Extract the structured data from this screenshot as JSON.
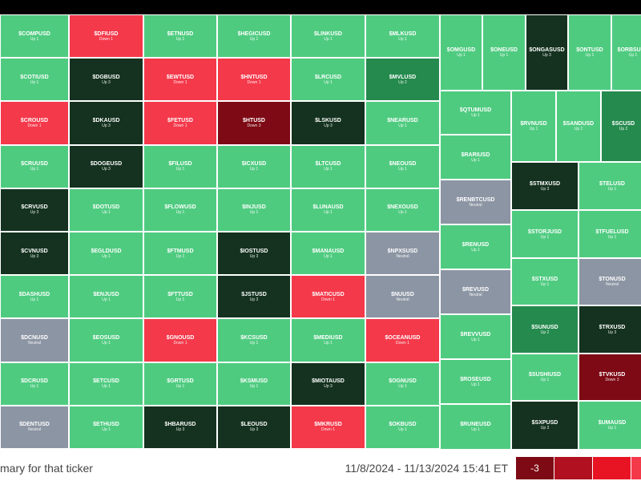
{
  "tiles": [
    {
      "ticker": "$COMPUSD",
      "status": "Up 1",
      "color": "#4fcb80"
    },
    {
      "ticker": "$COTIUSD",
      "status": "Up 1",
      "color": "#4fcb80"
    },
    {
      "ticker": "$CROUSD",
      "status": "Down 1",
      "color": "#f4394b"
    },
    {
      "ticker": "$CRUUSD",
      "status": "Up 1",
      "color": "#4fcb80"
    },
    {
      "ticker": "$CRVUSD",
      "status": "Up 3",
      "color": "#14321f"
    },
    {
      "ticker": "$CVNUSD",
      "status": "Up 3",
      "color": "#14321f"
    },
    {
      "ticker": "$DASHUSD",
      "status": "Up 1",
      "color": "#4fcb80"
    },
    {
      "ticker": "$DCNUSD",
      "status": "Neutral",
      "color": "#8c95a3"
    },
    {
      "ticker": "$DCRUSD",
      "status": "Up 1",
      "color": "#4fcb80"
    },
    {
      "ticker": "$DENTUSD",
      "status": "Neutral",
      "color": "#8c95a3"
    },
    {
      "ticker": "$DFIUSD",
      "status": "Down 1",
      "color": "#f4394b"
    },
    {
      "ticker": "$DGBUSD",
      "status": "Up 3",
      "color": "#14321f"
    },
    {
      "ticker": "$DKAUSD",
      "status": "Up 3",
      "color": "#14321f"
    },
    {
      "ticker": "$DOGEUSD",
      "status": "Up 3",
      "color": "#14321f"
    },
    {
      "ticker": "$DOTUSD",
      "status": "Up 1",
      "color": "#4fcb80"
    },
    {
      "ticker": "$EGLDUSD",
      "status": "Up 1",
      "color": "#4fcb80"
    },
    {
      "ticker": "$ENJUSD",
      "status": "Up 1",
      "color": "#4fcb80"
    },
    {
      "ticker": "$EOSUSD",
      "status": "Up 1",
      "color": "#4fcb80"
    },
    {
      "ticker": "$ETCUSD",
      "status": "Up 1",
      "color": "#4fcb80"
    },
    {
      "ticker": "$ETHUSD",
      "status": "Up 1",
      "color": "#4fcb80"
    },
    {
      "ticker": "$ETNUSD",
      "status": "Up 1",
      "color": "#4fcb80"
    },
    {
      "ticker": "$EWTUSD",
      "status": "Down 1",
      "color": "#f4394b"
    },
    {
      "ticker": "$FETUSD",
      "status": "Down 1",
      "color": "#f4394b"
    },
    {
      "ticker": "$FILUSD",
      "status": "Up 1",
      "color": "#4fcb80"
    },
    {
      "ticker": "$FLOWUSD",
      "status": "Up 1",
      "color": "#4fcb80"
    },
    {
      "ticker": "$FTMUSD",
      "status": "Up 1",
      "color": "#4fcb80"
    },
    {
      "ticker": "$FTTUSD",
      "status": "Up 1",
      "color": "#4fcb80"
    },
    {
      "ticker": "$GNOUSD",
      "status": "Down 1",
      "color": "#f4394b"
    },
    {
      "ticker": "$GRTUSD",
      "status": "Up 1",
      "color": "#4fcb80"
    },
    {
      "ticker": "$HBARUSD",
      "status": "Up 3",
      "color": "#14321f"
    },
    {
      "ticker": "$HEGICUSD",
      "status": "Up 1",
      "color": "#4fcb80"
    },
    {
      "ticker": "$HNTUSD",
      "status": "Down 1",
      "color": "#f4394b"
    },
    {
      "ticker": "$HTUSD",
      "status": "Down 3",
      "color": "#7d0a14"
    },
    {
      "ticker": "$ICXUSD",
      "status": "Up 1",
      "color": "#4fcb80"
    },
    {
      "ticker": "$INJUSD",
      "status": "Up 1",
      "color": "#4fcb80"
    },
    {
      "ticker": "$IOSTUSD",
      "status": "Up 3",
      "color": "#14321f"
    },
    {
      "ticker": "$JSTUSD",
      "status": "Up 3",
      "color": "#14321f"
    },
    {
      "ticker": "$KCSUSD",
      "status": "Up 1",
      "color": "#4fcb80"
    },
    {
      "ticker": "$KSMUSD",
      "status": "Up 1",
      "color": "#4fcb80"
    },
    {
      "ticker": "$LEOUSD",
      "status": "Up 3",
      "color": "#14321f"
    },
    {
      "ticker": "$LINKUSD",
      "status": "Up 1",
      "color": "#4fcb80"
    },
    {
      "ticker": "$LRCUSD",
      "status": "Up 1",
      "color": "#4fcb80"
    },
    {
      "ticker": "$LSKUSD",
      "status": "Up 3",
      "color": "#14321f"
    },
    {
      "ticker": "$LTCUSD",
      "status": "Up 1",
      "color": "#4fcb80"
    },
    {
      "ticker": "$LUNAUSD",
      "status": "Up 1",
      "color": "#4fcb80"
    },
    {
      "ticker": "$MANAUSD",
      "status": "Up 1",
      "color": "#4fcb80"
    },
    {
      "ticker": "$MATICUSD",
      "status": "Down 1",
      "color": "#f4394b"
    },
    {
      "ticker": "$MEDIUSD",
      "status": "Up 1",
      "color": "#4fcb80"
    },
    {
      "ticker": "$MIOTAUSD",
      "status": "Up 3",
      "color": "#14321f"
    },
    {
      "ticker": "$MKRUSD",
      "status": "Down 1",
      "color": "#f4394b"
    },
    {
      "ticker": "$MLKUSD",
      "status": "Up 1",
      "color": "#4fcb80"
    },
    {
      "ticker": "$MVLUSD",
      "status": "Up 2",
      "color": "#258a4d"
    },
    {
      "ticker": "$NEARUSD",
      "status": "Up 1",
      "color": "#4fcb80"
    },
    {
      "ticker": "$NEOUSD",
      "status": "Up 1",
      "color": "#4fcb80"
    },
    {
      "ticker": "$NEXOUSD",
      "status": "Up 1",
      "color": "#4fcb80"
    },
    {
      "ticker": "$NPXSUSD",
      "status": "Neutral",
      "color": "#8c95a3"
    },
    {
      "ticker": "$NUUSD",
      "status": "Neutral",
      "color": "#8c95a3"
    },
    {
      "ticker": "$OCEANUSD",
      "status": "Down 1",
      "color": "#f4394b"
    },
    {
      "ticker": "$OGNUSD",
      "status": "Up 1",
      "color": "#4fcb80"
    },
    {
      "ticker": "$OKBUSD",
      "status": "Up 1",
      "color": "#4fcb80"
    },
    {
      "ticker": "$OMGUSD",
      "status": "Up 1",
      "color": "#4fcb80"
    },
    {
      "ticker": "$ONEUSD",
      "status": "Up 1",
      "color": "#4fcb80"
    },
    {
      "ticker": "$ONGASUSD",
      "status": "Up 3",
      "color": "#14321f"
    },
    {
      "ticker": "$ONTUSD",
      "status": "Up 1",
      "color": "#4fcb80"
    },
    {
      "ticker": "$ORBSUSD",
      "status": "Up 1",
      "color": "#4fcb80"
    },
    {
      "ticker": "$QTUMUSD",
      "status": "Up 1",
      "color": "#4fcb80"
    },
    {
      "ticker": "$RARIUSD",
      "status": "Up 1",
      "color": "#4fcb80"
    },
    {
      "ticker": "$RENBTCUSD",
      "status": "Neutral",
      "color": "#8c95a3"
    },
    {
      "ticker": "$RENUSD",
      "status": "Up 1",
      "color": "#4fcb80"
    },
    {
      "ticker": "$REVUSD",
      "status": "Neutral",
      "color": "#8c95a3"
    },
    {
      "ticker": "$REVVUSD",
      "status": "Up 1",
      "color": "#4fcb80"
    },
    {
      "ticker": "$ROSEUSD",
      "status": "Up 1",
      "color": "#4fcb80"
    },
    {
      "ticker": "$RUNEUSD",
      "status": "Up 1",
      "color": "#4fcb80"
    },
    {
      "ticker": "$RVNUSD",
      "status": "Up 1",
      "color": "#4fcb80"
    },
    {
      "ticker": "$SANDUSD",
      "status": "Up 1",
      "color": "#4fcb80"
    },
    {
      "ticker": "$SCUSD",
      "status": "Up 2",
      "color": "#258a4d"
    },
    {
      "ticker": "$STMXUSD",
      "status": "Up 3",
      "color": "#14321f"
    },
    {
      "ticker": "$TELUSD",
      "status": "Up 1",
      "color": "#4fcb80"
    },
    {
      "ticker": "$STORJUSD",
      "status": "Up 1",
      "color": "#4fcb80"
    },
    {
      "ticker": "$TFUELUSD",
      "status": "Up 1",
      "color": "#4fcb80"
    },
    {
      "ticker": "$STXUSD",
      "status": "Up 1",
      "color": "#4fcb80"
    },
    {
      "ticker": "$TONUSD",
      "status": "Neutral",
      "color": "#8c95a3"
    },
    {
      "ticker": "$SUNUSD",
      "status": "Up 2",
      "color": "#258a4d"
    },
    {
      "ticker": "$TRXUSD",
      "status": "Up 3",
      "color": "#14321f"
    },
    {
      "ticker": "$SUSHIUSD",
      "status": "Up 1",
      "color": "#4fcb80"
    },
    {
      "ticker": "$TVKUSD",
      "status": "Down 3",
      "color": "#7d0a14"
    },
    {
      "ticker": "$SXPUSD",
      "status": "Up 3",
      "color": "#14321f"
    },
    {
      "ticker": "$UMAUSD",
      "status": "Up 1",
      "color": "#4fcb80"
    }
  ],
  "footer": {
    "hint": "mary for that ticker",
    "range": "11/8/2024 - 11/13/2024 15:41 ET",
    "legend": {
      "label": "-3",
      "colors": [
        "#7d0a14",
        "#b0101f",
        "#e81424",
        "#f4394b"
      ]
    }
  }
}
